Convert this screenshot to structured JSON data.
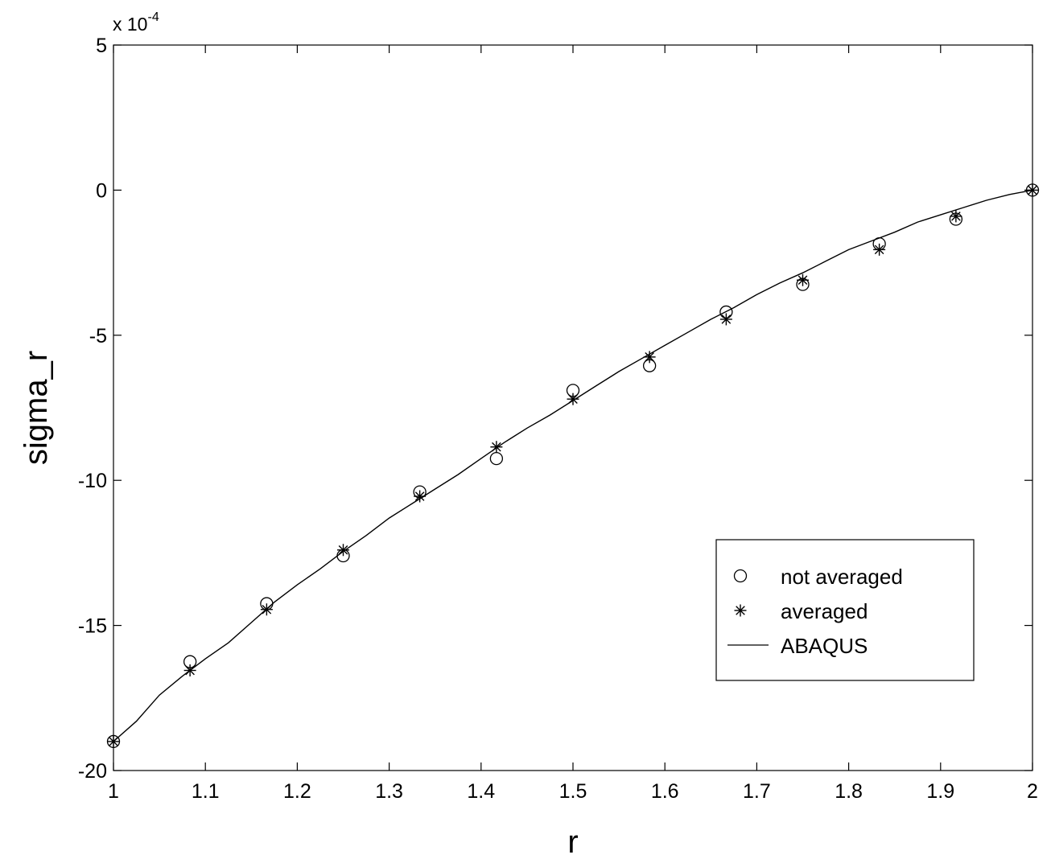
{
  "chart_data": {
    "type": "line",
    "xlabel": "r",
    "ylabel": "sigma_r",
    "y_exponent_label": "x 10",
    "y_exponent_power": "-4",
    "xlim": [
      1,
      2
    ],
    "ylim": [
      -20,
      5
    ],
    "x_ticks": [
      "1",
      "1.1",
      "1.2",
      "1.3",
      "1.4",
      "1.5",
      "1.6",
      "1.7",
      "1.8",
      "1.9",
      "2"
    ],
    "y_ticks": [
      "5",
      "0",
      "-5",
      "-10",
      "-15",
      "-20"
    ],
    "y_tick_values": [
      5,
      0,
      -5,
      -10,
      -15,
      -20
    ],
    "grid": false,
    "legend_position": "lower-right",
    "series": [
      {
        "name": "not averaged",
        "marker": "circle",
        "x": [
          1.0,
          1.0833,
          1.1667,
          1.25,
          1.3333,
          1.4167,
          1.5,
          1.5833,
          1.6667,
          1.75,
          1.8333,
          1.9167,
          2.0
        ],
        "y": [
          -19.0,
          -16.25,
          -14.25,
          -12.6,
          -10.4,
          -9.25,
          -6.9,
          -6.05,
          -4.2,
          -3.25,
          -1.85,
          -1.0,
          0.0
        ]
      },
      {
        "name": "averaged",
        "marker": "asterisk",
        "x": [
          1.0,
          1.0833,
          1.1667,
          1.25,
          1.3333,
          1.4167,
          1.5,
          1.5833,
          1.6667,
          1.75,
          1.8333,
          1.9167,
          2.0
        ],
        "y": [
          -19.0,
          -16.55,
          -14.45,
          -12.4,
          -10.55,
          -8.85,
          -7.2,
          -5.75,
          -4.45,
          -3.1,
          -2.05,
          -0.9,
          0.0
        ]
      },
      {
        "name": "ABAQUS",
        "marker": "none",
        "x": [
          1.0,
          1.025,
          1.05,
          1.075,
          1.1,
          1.125,
          1.15,
          1.175,
          1.2,
          1.225,
          1.25,
          1.275,
          1.3,
          1.325,
          1.35,
          1.375,
          1.4,
          1.425,
          1.45,
          1.475,
          1.5,
          1.525,
          1.55,
          1.575,
          1.6,
          1.625,
          1.65,
          1.675,
          1.7,
          1.725,
          1.75,
          1.775,
          1.8,
          1.825,
          1.85,
          1.875,
          1.9,
          1.925,
          1.95,
          1.975,
          2.0
        ],
        "y": [
          -19.0,
          -18.3,
          -17.4,
          -16.75,
          -16.15,
          -15.6,
          -14.9,
          -14.2,
          -13.6,
          -13.05,
          -12.45,
          -11.9,
          -11.3,
          -10.8,
          -10.3,
          -9.8,
          -9.25,
          -8.7,
          -8.2,
          -7.75,
          -7.25,
          -6.75,
          -6.25,
          -5.8,
          -5.35,
          -4.9,
          -4.45,
          -4.05,
          -3.6,
          -3.2,
          -2.85,
          -2.45,
          -2.05,
          -1.75,
          -1.45,
          -1.1,
          -0.85,
          -0.6,
          -0.35,
          -0.15,
          0.0
        ]
      }
    ]
  }
}
